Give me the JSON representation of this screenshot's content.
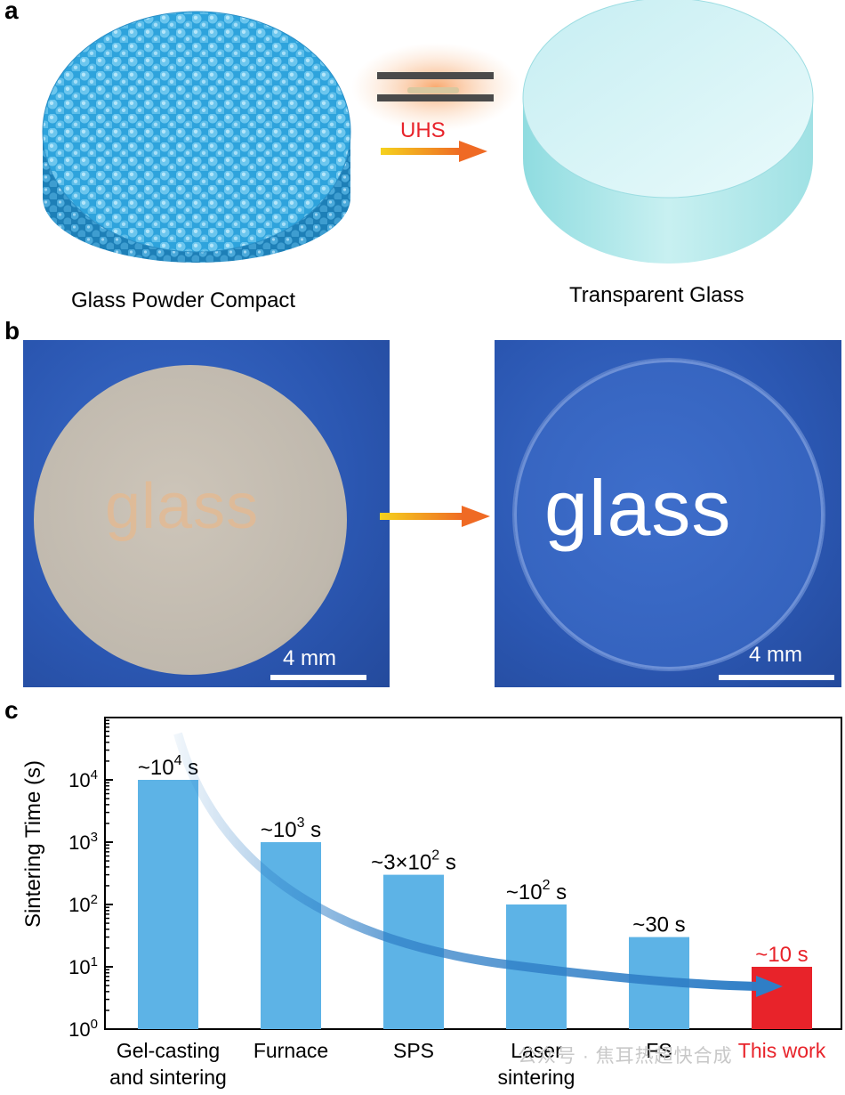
{
  "panel_a": {
    "letter": "a",
    "left_caption": "Glass Powder Compact",
    "right_caption": "Transparent Glass",
    "process_label": "UHS"
  },
  "panel_b": {
    "letter": "b",
    "left_word": "glass",
    "right_word": "glass",
    "left_scale": "4 mm",
    "right_scale": "4 mm"
  },
  "panel_c": {
    "letter": "c"
  },
  "colors": {
    "bar": "#5db3e6",
    "highlight_bar": "#e8232a",
    "arrow": "#2f7ec6",
    "uhs": "#e8232a"
  },
  "chart_data": {
    "type": "bar",
    "yscale": "log",
    "ylabel": "Sintering Time (s)",
    "ylim": [
      1,
      100000
    ],
    "yticks": [
      {
        "value": 1,
        "base": "10",
        "exp": "0"
      },
      {
        "value": 10,
        "base": "10",
        "exp": "1"
      },
      {
        "value": 100,
        "base": "10",
        "exp": "2"
      },
      {
        "value": 1000,
        "base": "10",
        "exp": "3"
      },
      {
        "value": 10000,
        "base": "10",
        "exp": "4"
      }
    ],
    "categories": [
      {
        "line1": "Gel-casting",
        "line2": "and sintering",
        "highlight": false
      },
      {
        "line1": "Furnace",
        "line2": "",
        "highlight": false
      },
      {
        "line1": "SPS",
        "line2": "",
        "highlight": false
      },
      {
        "line1": "Laser",
        "line2": "sintering",
        "highlight": false
      },
      {
        "line1": "FS",
        "line2": "",
        "highlight": false
      },
      {
        "line1": "This work",
        "line2": "",
        "highlight": true
      }
    ],
    "values": [
      10000,
      1000,
      300,
      100,
      30,
      10
    ],
    "data_labels": [
      {
        "base": "~10",
        "exp": "4",
        "unit": "s"
      },
      {
        "base": "~10",
        "exp": "3",
        "unit": "s"
      },
      {
        "base": "~3×10",
        "exp": "2",
        "unit": "s"
      },
      {
        "base": "~10",
        "exp": "2",
        "unit": "s"
      },
      {
        "base": "~30 s",
        "exp": "",
        "unit": ""
      },
      {
        "base": "~10 s",
        "exp": "",
        "unit": ""
      }
    ]
  },
  "watermark": "公众号 · 焦耳热超快合成"
}
